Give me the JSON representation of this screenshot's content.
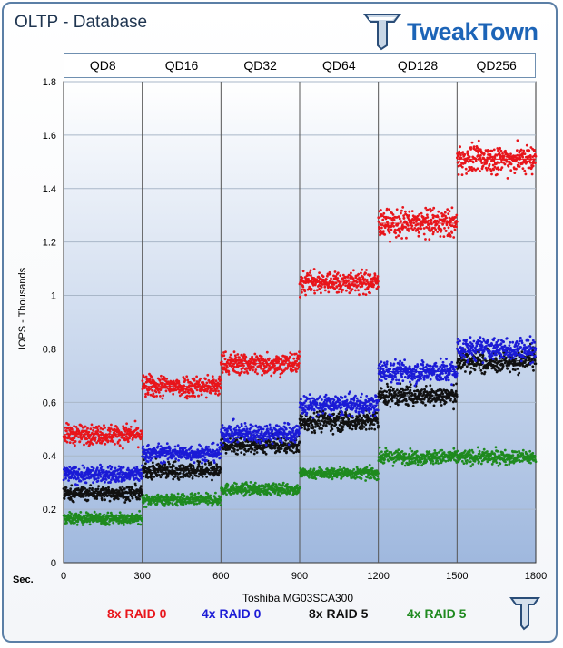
{
  "header": {
    "title": "OLTP - Database",
    "brand": "TweakTown"
  },
  "chart_data": {
    "type": "scatter",
    "title": "OLTP - Database",
    "ylabel": "IOPS - Thousands",
    "xlabel": "Toshiba MG03SCA300",
    "x_unit_label": "Sec.",
    "ylim": [
      0,
      1.8
    ],
    "xlim": [
      0,
      1800
    ],
    "y_ticks": [
      "0",
      "0.2",
      "0.4",
      "0.6",
      "0.8",
      "1",
      "1.2",
      "1.4",
      "1.6",
      "1.8"
    ],
    "x_ticks": [
      "0",
      "300",
      "600",
      "900",
      "1200",
      "1500",
      "1800"
    ],
    "grid": true,
    "segments": [
      "QD8",
      "QD16",
      "QD32",
      "QD64",
      "QD128",
      "QD256"
    ],
    "segment_bounds": [
      0,
      300,
      600,
      900,
      1200,
      1500,
      1800
    ],
    "series": [
      {
        "name": "8x RAID 0",
        "color": "#e8151b",
        "segment_means": [
          0.48,
          0.66,
          0.745,
          1.05,
          1.27,
          1.51
        ],
        "spread": [
          0.035,
          0.04,
          0.04,
          0.04,
          0.05,
          0.05
        ]
      },
      {
        "name": "4x RAID 0",
        "color": "#1b1bd6",
        "segment_means": [
          0.33,
          0.41,
          0.485,
          0.59,
          0.715,
          0.8
        ],
        "spread": [
          0.03,
          0.03,
          0.035,
          0.035,
          0.04,
          0.04
        ]
      },
      {
        "name": "8x RAID 5",
        "color": "#111111",
        "segment_means": [
          0.26,
          0.345,
          0.44,
          0.53,
          0.625,
          0.755
        ],
        "spread": [
          0.025,
          0.03,
          0.03,
          0.035,
          0.035,
          0.04
        ]
      },
      {
        "name": "4x RAID 5",
        "color": "#1f8a1f",
        "segment_means": [
          0.165,
          0.235,
          0.275,
          0.335,
          0.395,
          0.395
        ],
        "spread": [
          0.02,
          0.02,
          0.02,
          0.02,
          0.025,
          0.025
        ]
      }
    ]
  }
}
